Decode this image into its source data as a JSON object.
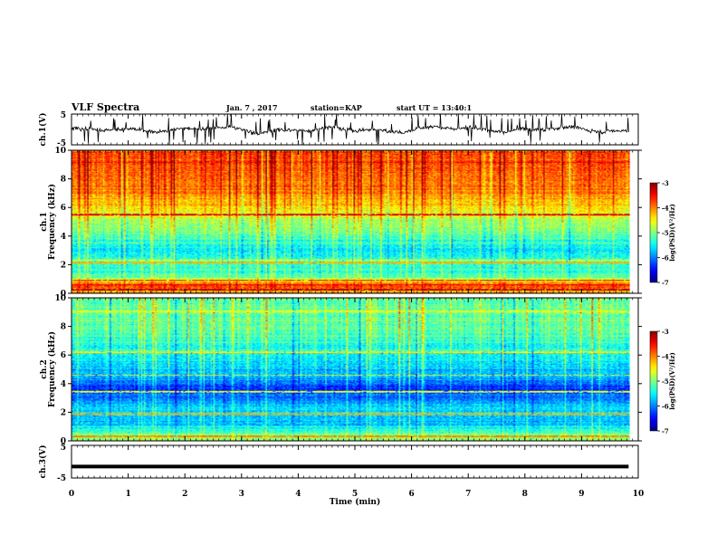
{
  "header": {
    "title": "VLF Spectra",
    "date": "Jan. 7 , 2017",
    "station": "station=KAP",
    "start": "start UT =  13:40:1"
  },
  "chart_data": {
    "type": "heatmap",
    "time": {
      "label": "Time (min)",
      "range": [
        0,
        10
      ],
      "ticks": [
        "0",
        "1",
        "2",
        "3",
        "4",
        "5",
        "6",
        "7",
        "8",
        "9",
        "10"
      ],
      "data_end": 9.83
    },
    "panels": [
      {
        "id": "ch1-waveform",
        "type": "line",
        "ylabel": "ch.1(V)",
        "ylim": [
          -5,
          5
        ],
        "yticks": [
          "5",
          "-5"
        ],
        "mean": 0,
        "amplitude": 2.2,
        "color": "#000000"
      },
      {
        "id": "ch1-spectrogram",
        "type": "heatmap",
        "ylabel": "ch.1",
        "ylabel2": "Frequency (kHz)",
        "ylim": [
          0,
          10
        ],
        "yticks": [
          "0",
          "2",
          "4",
          "6",
          "8",
          "10"
        ],
        "colorbar": {
          "label": "log(PSD)(V²/Hz)",
          "range": [
            -7,
            -3
          ],
          "ticks": [
            "-3",
            "-4",
            "-5",
            "-6",
            "-7"
          ]
        },
        "level_profile_khz_logpsd": [
          [
            0,
            -4.3
          ],
          [
            0.6,
            -3.6
          ],
          [
            1.2,
            -5.2
          ],
          [
            2,
            -5.3
          ],
          [
            3,
            -5.6
          ],
          [
            4,
            -5.2
          ],
          [
            5,
            -4.8
          ],
          [
            6,
            -4.4
          ],
          [
            7,
            -4.1
          ],
          [
            8,
            -3.9
          ],
          [
            10,
            -3.7
          ]
        ],
        "lines_khz_logpsd": [
          [
            0.25,
            -3.2
          ],
          [
            0.6,
            -3.4
          ],
          [
            0.9,
            -3.5
          ],
          [
            2.15,
            -4.2
          ],
          [
            2.3,
            -4.6
          ],
          [
            5.5,
            -3.4
          ]
        ]
      },
      {
        "id": "ch2-spectrogram",
        "type": "heatmap",
        "ylabel": "ch.2",
        "ylabel2": "Frequency (kHz)",
        "ylim": [
          0,
          10
        ],
        "yticks": [
          "0",
          "2",
          "4",
          "6",
          "8",
          "10"
        ],
        "colorbar": {
          "label": "log(PSD)(V²/Hz)",
          "range": [
            -7,
            -3
          ],
          "ticks": [
            "-3",
            "-4",
            "-5",
            "-6",
            "-7"
          ]
        },
        "level_profile_khz_logpsd": [
          [
            0,
            -4.8
          ],
          [
            0.5,
            -5.0
          ],
          [
            1,
            -5.6
          ],
          [
            1.6,
            -5.8
          ],
          [
            2.2,
            -5.6
          ],
          [
            3,
            -6.0
          ],
          [
            3.8,
            -6.4
          ],
          [
            4.3,
            -5.8
          ],
          [
            5,
            -5.7
          ],
          [
            6,
            -5.4
          ],
          [
            7,
            -5.3
          ],
          [
            8,
            -5.1
          ],
          [
            10,
            -5.0
          ]
        ],
        "lines_khz_logpsd": [
          [
            0.3,
            -4.0
          ],
          [
            1.9,
            -4.2
          ],
          [
            3.45,
            -4.6
          ],
          [
            4.6,
            -4.7
          ],
          [
            6.2,
            -4.4
          ],
          [
            9.05,
            -4.6
          ]
        ]
      },
      {
        "id": "ch3-waveform",
        "type": "line",
        "ylabel": "ch.3(V)",
        "ylim": [
          -5,
          5
        ],
        "yticks": [
          "5",
          "-5"
        ],
        "mean": -1.5,
        "amplitude": 0.15,
        "color": "#000000"
      }
    ]
  }
}
